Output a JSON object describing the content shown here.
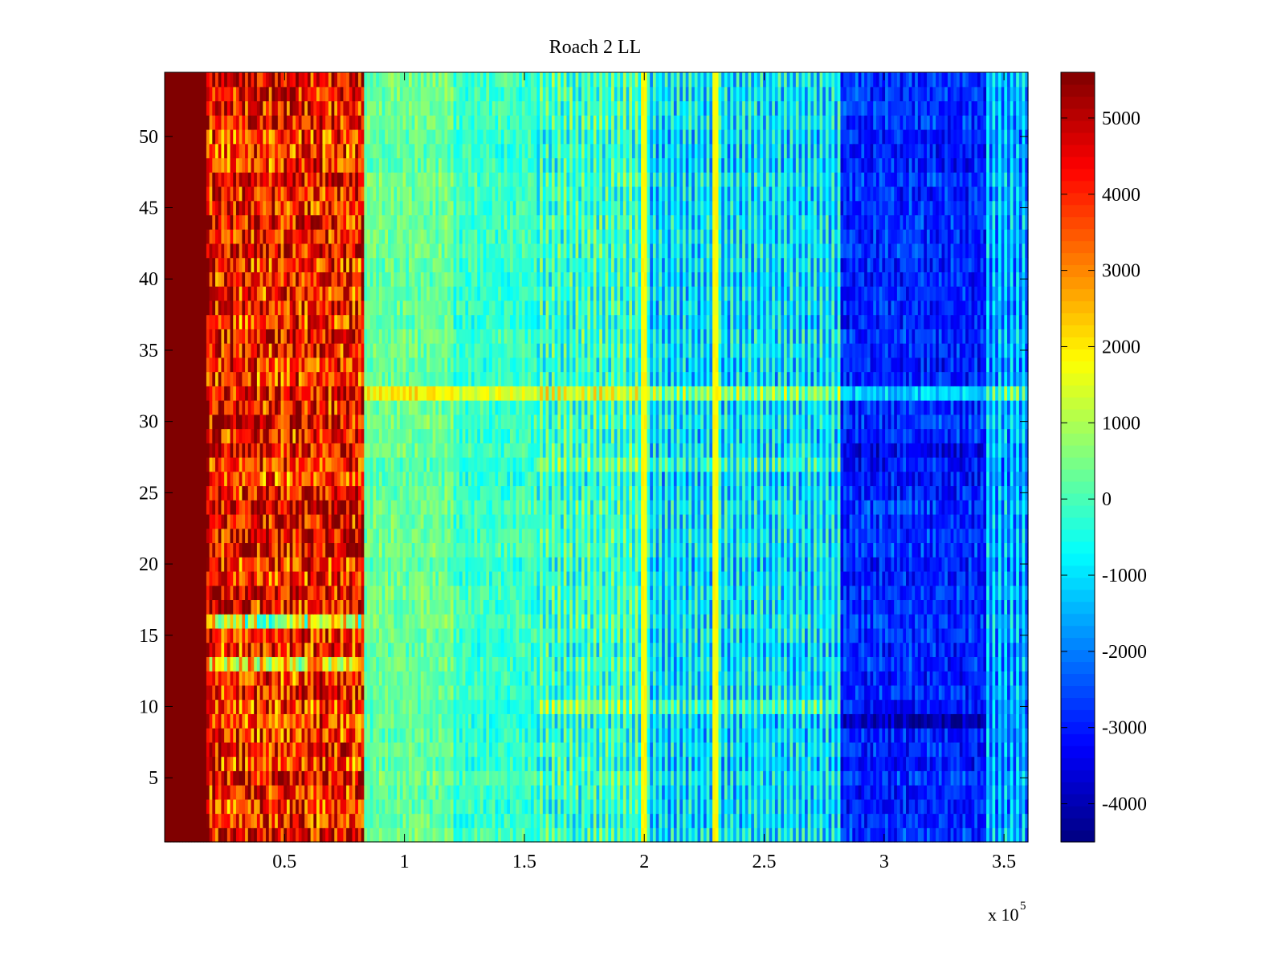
{
  "chart_data": {
    "type": "heatmap",
    "title": "Roach 2 LL",
    "xlabel": "",
    "ylabel": "",
    "x_multiplier_label": "x 10",
    "x_multiplier_exponent": "5",
    "xlim": [
      0,
      3.6
    ],
    "ylim": [
      0.5,
      54.5
    ],
    "xticks": [
      {
        "value": 0.5,
        "label": "0.5"
      },
      {
        "value": 1.0,
        "label": "1"
      },
      {
        "value": 1.5,
        "label": "1.5"
      },
      {
        "value": 2.0,
        "label": "2"
      },
      {
        "value": 2.5,
        "label": "2.5"
      },
      {
        "value": 3.0,
        "label": "3"
      },
      {
        "value": 3.5,
        "label": "3.5"
      }
    ],
    "yticks": [
      {
        "value": 5,
        "label": "5"
      },
      {
        "value": 10,
        "label": "10"
      },
      {
        "value": 15,
        "label": "15"
      },
      {
        "value": 20,
        "label": "20"
      },
      {
        "value": 25,
        "label": "25"
      },
      {
        "value": 30,
        "label": "30"
      },
      {
        "value": 35,
        "label": "35"
      },
      {
        "value": 40,
        "label": "40"
      },
      {
        "value": 45,
        "label": "45"
      },
      {
        "value": 50,
        "label": "50"
      }
    ],
    "rows": 54,
    "colorbar": {
      "colormap": "jet",
      "clim": [
        -4500,
        5600
      ],
      "ticks": [
        {
          "value": 5000,
          "label": "5000"
        },
        {
          "value": 4000,
          "label": "4000"
        },
        {
          "value": 3000,
          "label": "3000"
        },
        {
          "value": 2000,
          "label": "2000"
        },
        {
          "value": 1000,
          "label": "1000"
        },
        {
          "value": 0,
          "label": "0"
        },
        {
          "value": -1000,
          "label": "-1000"
        },
        {
          "value": -2000,
          "label": "-2000"
        },
        {
          "value": -3000,
          "label": "-3000"
        },
        {
          "value": -4000,
          "label": "-4000"
        }
      ]
    },
    "segments": [
      {
        "x_start": 0.0,
        "x_end": 0.18,
        "base": 5600,
        "amplitude": 0,
        "stripe": 0
      },
      {
        "x_start": 0.18,
        "x_end": 0.83,
        "base": 4200,
        "amplitude": 1700,
        "stripe": 700
      },
      {
        "x_start": 0.83,
        "x_end": 1.2,
        "base": 300,
        "amplitude": 500,
        "stripe": 300
      },
      {
        "x_start": 1.2,
        "x_end": 1.55,
        "base": -200,
        "amplitude": 550,
        "stripe": 300
      },
      {
        "x_start": 1.55,
        "x_end": 2.0,
        "base": -200,
        "amplitude": 600,
        "stripe": 1300
      },
      {
        "x_start": 2.0,
        "x_end": 2.82,
        "base": -1000,
        "amplitude": 600,
        "stripe": 1500
      },
      {
        "x_start": 2.82,
        "x_end": 3.43,
        "base": -2900,
        "amplitude": 700,
        "stripe": 400
      },
      {
        "x_start": 3.43,
        "x_end": 3.6,
        "base": -1600,
        "amplitude": 600,
        "stripe": 1500
      }
    ],
    "row_features": [
      {
        "row": 32,
        "offset": 1500,
        "x_from": 0.83,
        "note": "bright horizontal band near y=32"
      },
      {
        "row": 16,
        "offset": -3500,
        "x_from": 0.18,
        "x_to": 0.83
      },
      {
        "row": 13,
        "offset": -2500,
        "x_from": 0.18,
        "x_to": 0.83
      },
      {
        "row": 10,
        "offset": 1000,
        "x_from": 1.55,
        "x_to": 2.82
      },
      {
        "row": 9,
        "offset": -900,
        "x_from": 2.82,
        "x_to": 3.43
      },
      {
        "row": 28,
        "offset": -600,
        "x_from": 2.82,
        "x_to": 3.43
      },
      {
        "row": 27,
        "offset": 900,
        "x_from": 1.55,
        "x_to": 2.82
      }
    ],
    "vertical_features": [
      {
        "x": 2.0,
        "value": 1800
      },
      {
        "x": 2.3,
        "value": 1800
      }
    ]
  }
}
